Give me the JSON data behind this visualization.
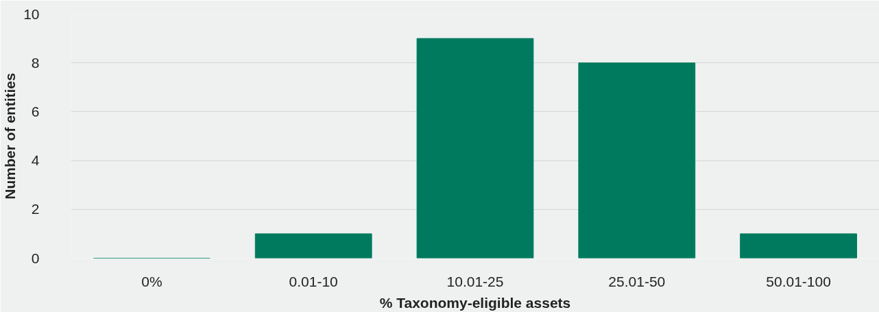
{
  "chart_data": {
    "type": "bar",
    "xlabel": "% Taxonomy-eligible assets",
    "ylabel": "Number of entities",
    "categories": [
      "0%",
      "0.01-10",
      "10.01-25",
      "25.01-50",
      "50.01-100"
    ],
    "values": [
      0,
      1,
      9,
      8,
      1
    ],
    "color": "#007a5e",
    "ylim": [
      0,
      10
    ],
    "yticks": [
      0,
      2,
      4,
      6,
      8,
      10
    ],
    "grid": "y"
  }
}
